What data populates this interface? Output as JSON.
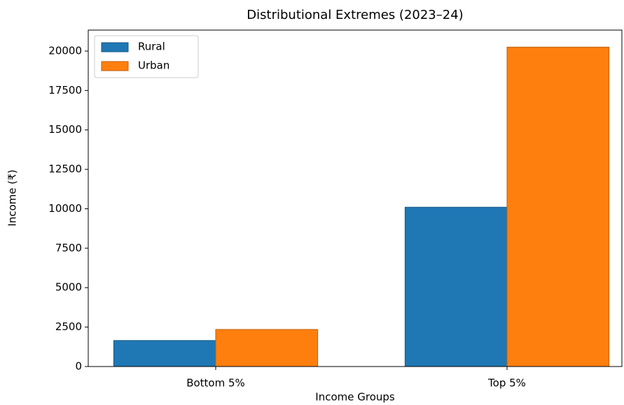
{
  "chart_data": {
    "type": "bar",
    "title": "Distributional Extremes (2023–24)",
    "x_label": "Income Groups",
    "y_label": "Income (₹)",
    "categories": [
      "Bottom 5%",
      "Top 5%"
    ],
    "series": [
      {
        "name": "Rural",
        "color": "#1f77b4",
        "values": [
          1650,
          10100
        ]
      },
      {
        "name": "Urban",
        "color": "#ff7f0e",
        "values": [
          2350,
          20250
        ]
      }
    ],
    "ylim": [
      0,
      21330
    ],
    "yticks": [
      0,
      2500,
      5000,
      7500,
      10000,
      12500,
      15000,
      17500,
      20000
    ],
    "legend": "upper left"
  }
}
